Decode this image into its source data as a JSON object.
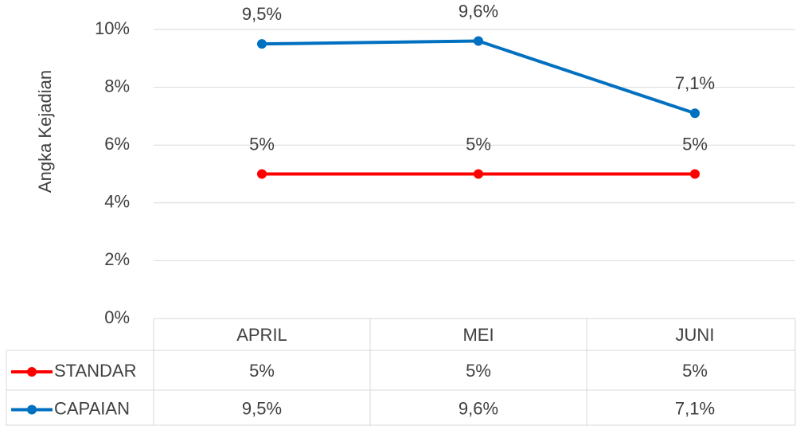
{
  "chart_data": {
    "type": "line",
    "y_label": "Angka Kejadian",
    "categories": [
      "APRIL",
      "MEI",
      "JUNI"
    ],
    "series": [
      {
        "name": "STANDAR",
        "color": "#ff0000",
        "values": [
          5,
          5,
          5
        ],
        "value_labels": [
          "5%",
          "5%",
          "5%"
        ]
      },
      {
        "name": "CAPAIAN",
        "color": "#0070c0",
        "values": [
          9.5,
          9.6,
          7.1
        ],
        "value_labels": [
          "9,5%",
          "9,6%",
          "7,1%"
        ]
      }
    ],
    "ylim": [
      0,
      10
    ],
    "yticks": [
      {
        "value": 0,
        "label": "0%"
      },
      {
        "value": 2,
        "label": "2%"
      },
      {
        "value": 4,
        "label": "4%"
      },
      {
        "value": 6,
        "label": "6%"
      },
      {
        "value": 8,
        "label": "8%"
      },
      {
        "value": 10,
        "label": "10%"
      }
    ],
    "grid": true
  }
}
